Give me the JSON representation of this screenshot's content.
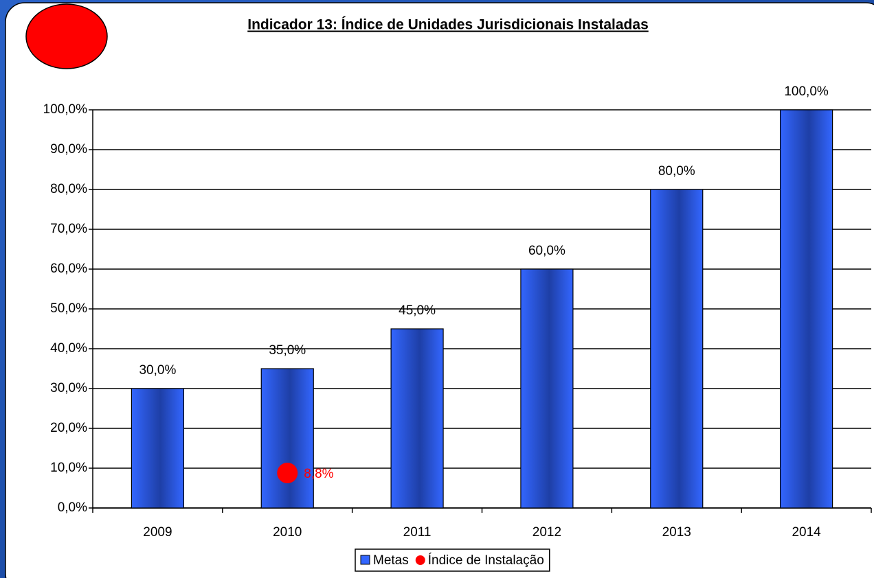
{
  "chart_data": {
    "type": "bar",
    "title": "Indicador 13: Índice de Unidades Jurisdicionais Instaladas",
    "categories": [
      "2009",
      "2010",
      "2011",
      "2012",
      "2013",
      "2014"
    ],
    "series": [
      {
        "name": "Metas",
        "type": "bar",
        "color": "#3366ff",
        "values": [
          30,
          35,
          45,
          60,
          80,
          100
        ],
        "value_labels": [
          "30,0%",
          "35,0%",
          "45,0%",
          "60,0%",
          "80,0%",
          "100,0%"
        ]
      },
      {
        "name": "Índice de Instalação",
        "type": "scatter",
        "color": "#ff0000",
        "values": [
          null,
          8.8,
          null,
          null,
          null,
          null
        ],
        "value_labels": [
          null,
          "8,8%",
          null,
          null,
          null,
          null
        ]
      }
    ],
    "ylim": [
      0,
      100
    ],
    "yticks": [
      {
        "value": 0,
        "label": "0,0%"
      },
      {
        "value": 10,
        "label": "10,0%"
      },
      {
        "value": 20,
        "label": "20,0%"
      },
      {
        "value": 30,
        "label": "30,0%"
      },
      {
        "value": 40,
        "label": "40,0%"
      },
      {
        "value": 50,
        "label": "50,0%"
      },
      {
        "value": 60,
        "label": "60,0%"
      },
      {
        "value": 70,
        "label": "70,0%"
      },
      {
        "value": 80,
        "label": "80,0%"
      },
      {
        "value": 90,
        "label": "90,0%"
      },
      {
        "value": 100,
        "label": "100,0%"
      }
    ],
    "grid": true,
    "legend": "bottom"
  }
}
